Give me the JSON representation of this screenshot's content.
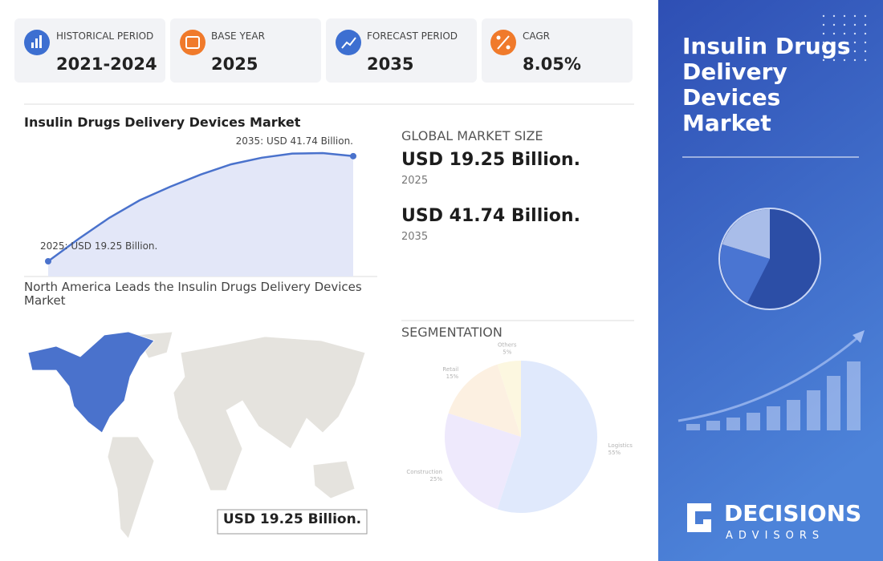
{
  "stats": [
    {
      "label": "HISTORICAL PERIOD",
      "value": "2021-2024"
    },
    {
      "label": "BASE YEAR",
      "value": "2025"
    },
    {
      "label": "FORECAST PERIOD",
      "value": "2035"
    },
    {
      "label": "CAGR",
      "value": "8.05%"
    }
  ],
  "chart_data": [
    {
      "type": "area",
      "title": "Insulin Drugs Delivery Devices Market",
      "values": [
        19.25,
        24.06,
        28.53,
        32.3,
        35.2,
        37.8,
        40.0,
        41.4,
        42.3,
        42.4,
        41.74
      ],
      "value_labels": [
        "2025: USD 19.25 Billion.",
        null,
        null,
        null,
        null,
        null,
        null,
        null,
        null,
        null,
        "2035: USD 41.74 Billion."
      ],
      "color": "#4a72cc"
    },
    {
      "type": "pie",
      "title": "SEGMENTATION",
      "categories": [
        "Logistics",
        "Construction",
        "Retail",
        "Others"
      ],
      "values": [
        55,
        25,
        15,
        5
      ],
      "value_labels": [
        "55%",
        "25%",
        "15%",
        "5%"
      ],
      "colors": [
        "#d6e2fb",
        "#e9e2fb",
        "#fcebd8",
        "#fcf5d6"
      ]
    }
  ],
  "market_size": {
    "title": "GLOBAL MARKET SIZE",
    "items": [
      {
        "value": "USD 19.25 Billion.",
        "year": "2025"
      },
      {
        "value": "USD 41.74 Billion.",
        "year": "2035"
      }
    ]
  },
  "map": {
    "title": "North America Leads the Insulin Drugs Delivery Devices Market",
    "highlight": "USD 19.25 Billion."
  },
  "side_panel": {
    "title": "Insulin Drugs Delivery Devices Market",
    "logo_name": "DECISIONS",
    "logo_tagline": "ADVISORS"
  }
}
